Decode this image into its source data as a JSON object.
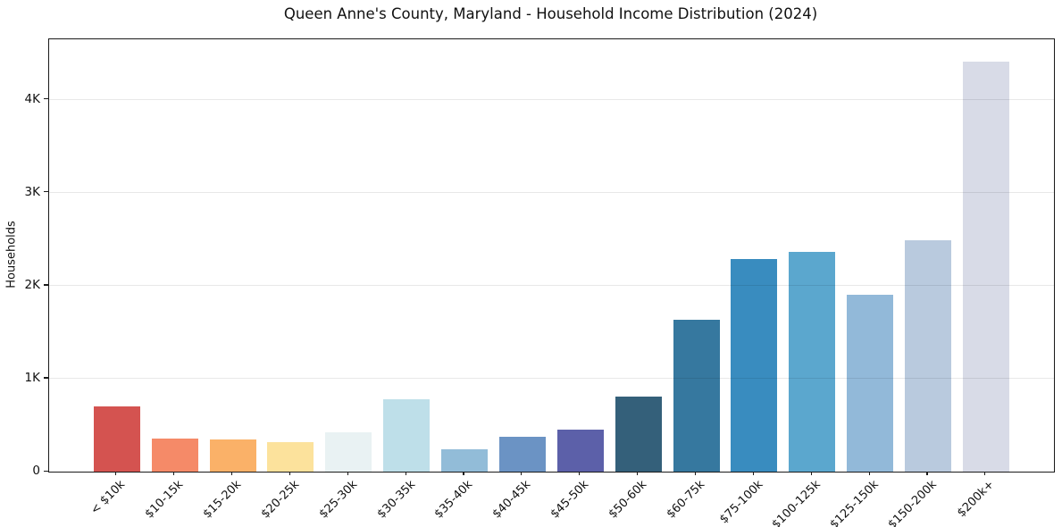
{
  "chart_data": {
    "type": "bar",
    "title": "Queen Anne's County, Maryland - Household Income Distribution (2024)",
    "xlabel": "",
    "ylabel": "Households",
    "categories": [
      "< $10k",
      "$10-15k",
      "$15-20k",
      "$20-25k",
      "$25-30k",
      "$30-35k",
      "$35-40k",
      "$40-45k",
      "$45-50k",
      "$50-60k",
      "$60-75k",
      "$75-100k",
      "$100-125k",
      "$125-150k",
      "$150-200k",
      "$200k+"
    ],
    "values": [
      700,
      355,
      350,
      320,
      420,
      775,
      240,
      378,
      455,
      810,
      1630,
      2285,
      2360,
      1900,
      2485,
      4410
    ],
    "bar_colors": [
      "#d45350",
      "#f58a68",
      "#fab168",
      "#fce29c",
      "#e9f2f3",
      "#bedfe9",
      "#92bcd8",
      "#6b93c4",
      "#5c60a9",
      "#34607a",
      "#36789f",
      "#398cbf",
      "#5ba7ce",
      "#92b9d9",
      "#b9cade",
      "#d8dbe7"
    ],
    "ylim": [
      0,
      4650
    ],
    "yticks": [
      {
        "label": "0",
        "value": 0
      },
      {
        "label": "1K",
        "value": 1000
      },
      {
        "label": "2K",
        "value": 2000
      },
      {
        "label": "3K",
        "value": 3000
      },
      {
        "label": "4K",
        "value": 4000
      }
    ],
    "grid": "horizontal",
    "legend": "none",
    "grid_color": "#e8e8e8",
    "axis_color": "#1a1a1a",
    "background": "#ffffff"
  }
}
